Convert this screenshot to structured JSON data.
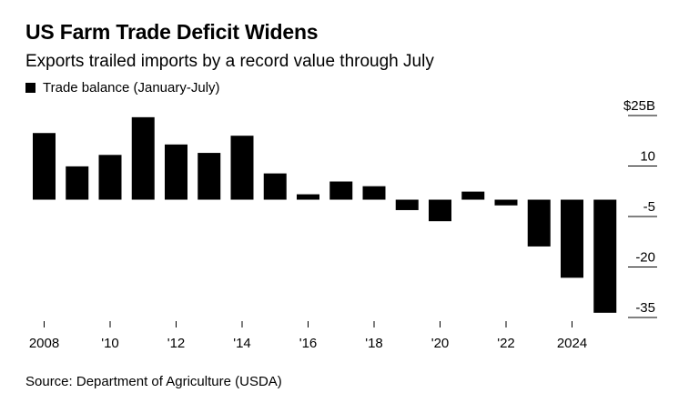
{
  "title": "US Farm Trade Deficit Widens",
  "subtitle": "Exports trailed imports by a record value through July",
  "source": "Source: Department of Agriculture (USDA)",
  "colors": {
    "bar": "#000000",
    "background": "#ffffff"
  },
  "chart_data": {
    "type": "bar",
    "title": "US Farm Trade Deficit Widens",
    "subtitle": "Exports trailed imports by a record value through July",
    "legend": [
      {
        "label": "Trade balance (January-July)",
        "color": "#000000"
      }
    ],
    "legend_position": "top-left",
    "xlabel": "",
    "ylabel": "",
    "y_unit": "billion USD",
    "ylim": [
      -35,
      25
    ],
    "y_ticks": [
      25,
      10,
      -5,
      -20,
      -35
    ],
    "y_tick_labels": [
      "$25B",
      "10",
      "-5",
      "-20",
      "-35"
    ],
    "x_ticks": [
      "2008",
      "'10",
      "'12",
      "'14",
      "'16",
      "'18",
      "'20",
      "'22",
      "2024"
    ],
    "x_tick_years": [
      2008,
      2010,
      2012,
      2014,
      2016,
      2018,
      2020,
      2022,
      2024
    ],
    "categories": [
      2008,
      2009,
      2010,
      2011,
      2012,
      2013,
      2014,
      2015,
      2016,
      2017,
      2018,
      2019,
      2020,
      2021,
      2022,
      2023,
      2024,
      2025
    ],
    "values": [
      19.8,
      9.9,
      13.3,
      24.5,
      16.4,
      13.9,
      19.0,
      7.8,
      1.6,
      5.4,
      4.0,
      -3.1,
      -6.4,
      2.4,
      -1.7,
      -13.9,
      -23.2,
      -33.6
    ],
    "grid": false
  }
}
